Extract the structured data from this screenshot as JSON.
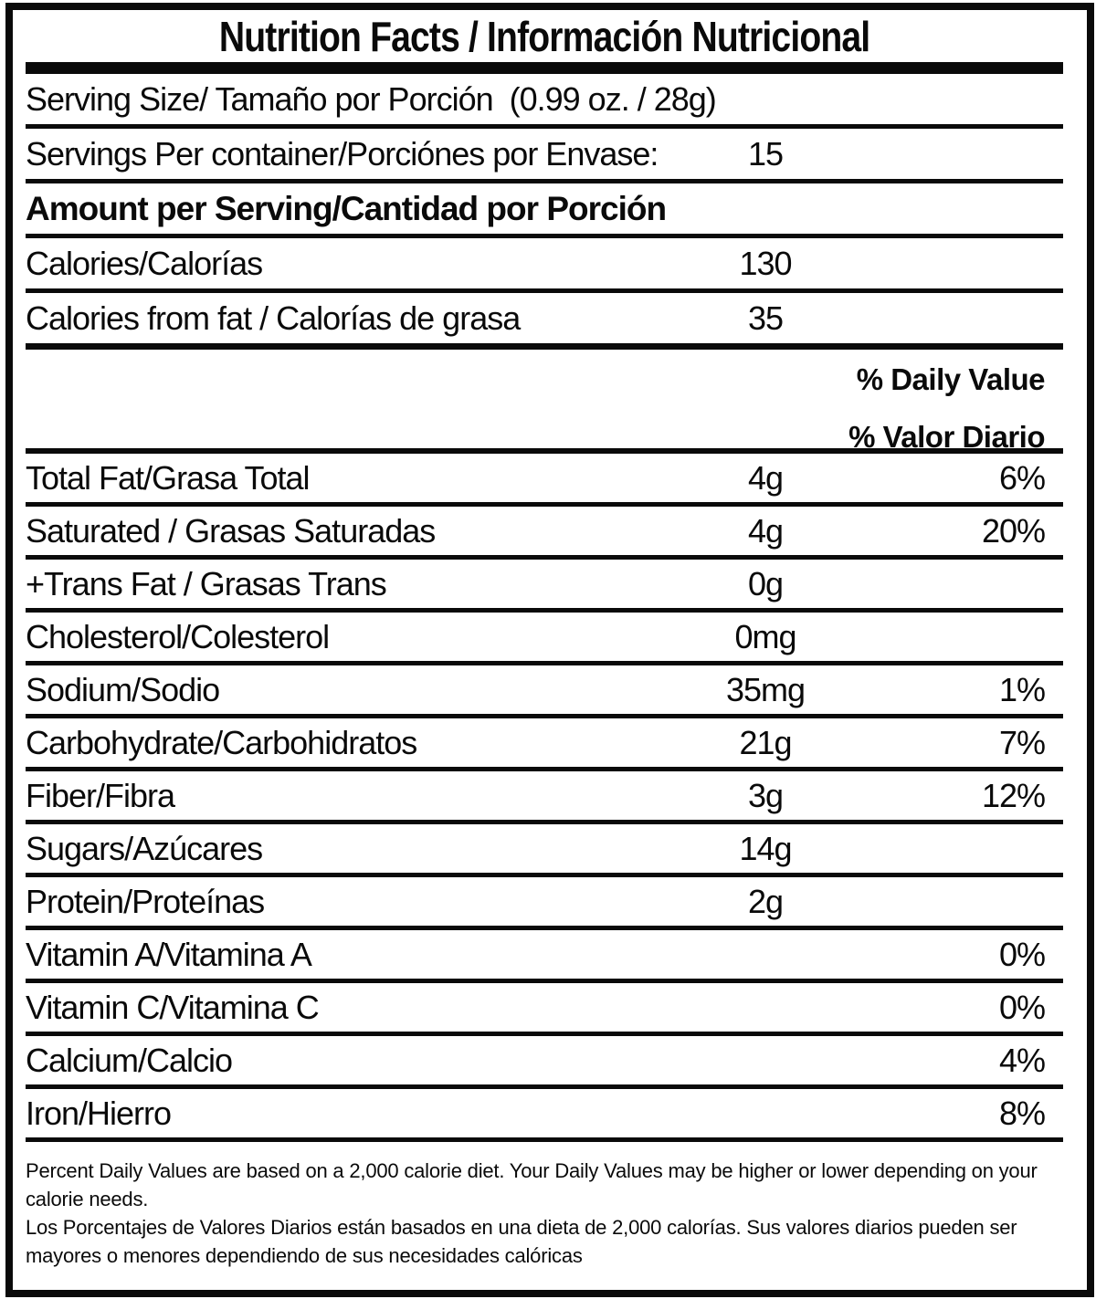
{
  "title": "Nutrition Facts / Información Nutricional",
  "serving": {
    "serving_size_label": "Serving Size/ Tamaño por Porción  (0.99 oz. / 28g)",
    "servings_per_container_label": "Servings Per container/Porciónes por Envase:",
    "servings_per_container_value": "15"
  },
  "amount_header": "Amount per Serving/Cantidad por Porción",
  "calories_rows": [
    {
      "label": "Calories/Calorías",
      "value": "130"
    },
    {
      "label": "Calories from fat / Calorías de grasa",
      "value": "35"
    }
  ],
  "daily_value_header": {
    "line1": "% Daily Value",
    "line2": "% Valor Diario"
  },
  "nutrients": [
    {
      "label": "Total Fat/Grasa Total",
      "amount": "4g",
      "dv": "6%"
    },
    {
      "label": "Saturated / Grasas Saturadas",
      "amount": "4g",
      "dv": "20%"
    },
    {
      "label": "+Trans Fat / Grasas Trans",
      "amount": "0g",
      "dv": ""
    },
    {
      "label": "Cholesterol/Colesterol",
      "amount": "0mg",
      "dv": ""
    },
    {
      "label": "Sodium/Sodio",
      "amount": "35mg",
      "dv": "1%"
    },
    {
      "label": "Carbohydrate/Carbohidratos",
      "amount": "21g",
      "dv": "7%"
    },
    {
      "label": "Fiber/Fibra",
      "amount": "3g",
      "dv": "12%"
    },
    {
      "label": "Sugars/Azúcares",
      "amount": "14g",
      "dv": ""
    },
    {
      "label": "Protein/Proteínas",
      "amount": "2g",
      "dv": ""
    },
    {
      "label": "Vitamin A/Vitamina A",
      "amount": "",
      "dv": "0%"
    },
    {
      "label": "Vitamin C/Vitamina C",
      "amount": "",
      "dv": "0%"
    },
    {
      "label": "Calcium/Calcio",
      "amount": "",
      "dv": "4%"
    },
    {
      "label": "Iron/Hierro",
      "amount": "",
      "dv": "8%"
    }
  ],
  "footnote": {
    "english": "Percent Daily Values are based on a 2,000 calorie diet. Your Daily Values may be higher or lower depending on your calorie needs.",
    "spanish": "Los Porcentajes de Valores Diarios están basados en una dieta de 2,000 calorías. Sus valores diarios pueden ser mayores o menores dependiendo de sus necesidades calóricas"
  },
  "colors": {
    "ink": "#0a0a0a",
    "paper": "#ffffff"
  }
}
